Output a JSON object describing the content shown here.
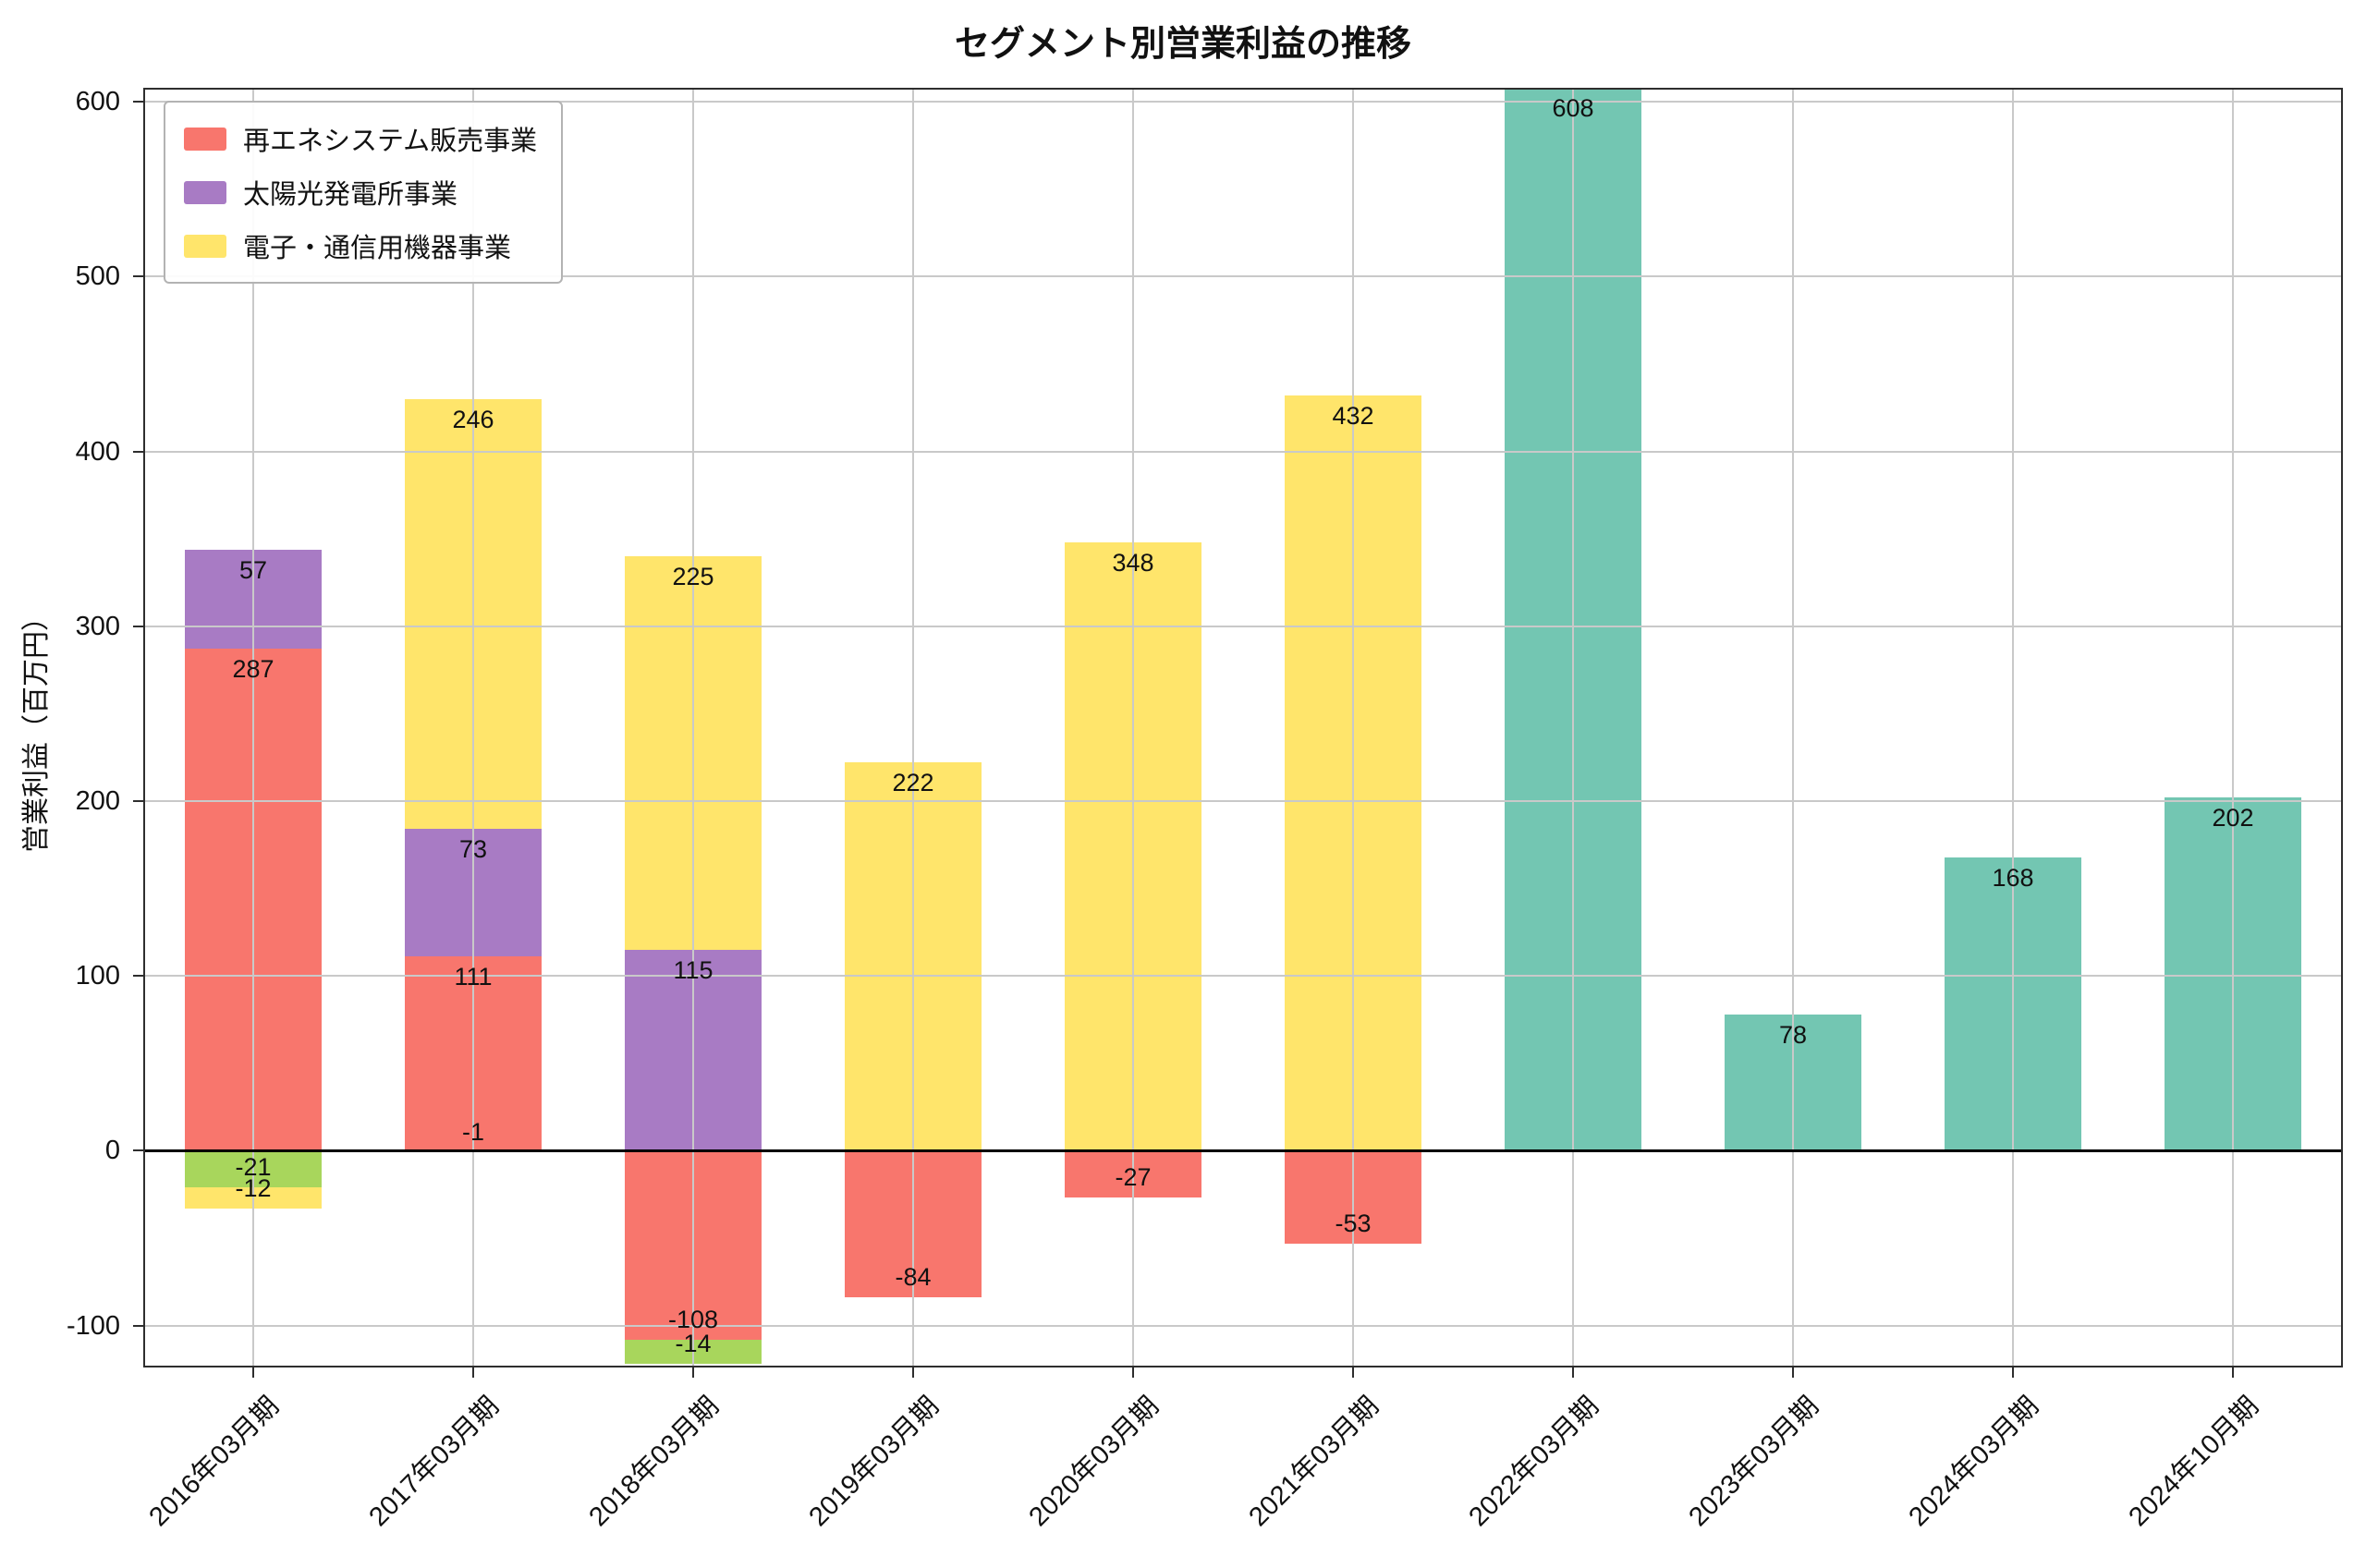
{
  "page": {
    "background": "#ffffff"
  },
  "chart_data": {
    "type": "bar",
    "stacked": true,
    "title": "セグメント別営業利益の推移",
    "ylabel": "営業利益（百万円）",
    "xlabel": "",
    "ylim": [
      -124,
      608
    ],
    "yticks": [
      -100,
      0,
      100,
      200,
      300,
      400,
      500,
      600
    ],
    "grid": true,
    "zero_line": true,
    "legend_position": "upper-left",
    "categories": [
      "2016年03月期",
      "2017年03月期",
      "2018年03月期",
      "2019年03月期",
      "2020年03月期",
      "2021年03月期",
      "2022年03月期",
      "2023年03月期",
      "2024年03月期",
      "2024年10月期"
    ],
    "series": [
      {
        "name": "再エネシステム販売事業",
        "color": "#f8766d",
        "in_legend": true,
        "values": [
          287,
          111,
          -108,
          -84,
          -27,
          -53,
          null,
          null,
          null,
          null
        ]
      },
      {
        "name": "",
        "color": "#a8d65c",
        "in_legend": false,
        "values": [
          -21,
          -1,
          -14,
          null,
          null,
          null,
          null,
          null,
          null,
          null
        ]
      },
      {
        "name": "太陽光発電所事業",
        "color": "#a87bc4",
        "in_legend": true,
        "values": [
          57,
          73,
          115,
          null,
          null,
          null,
          null,
          null,
          null,
          null
        ]
      },
      {
        "name": "電子・通信用機器事業",
        "color": "#ffe56b",
        "in_legend": true,
        "values": [
          -12,
          246,
          225,
          222,
          348,
          432,
          null,
          null,
          null,
          null
        ]
      },
      {
        "name": "",
        "color": "#73c6b2",
        "in_legend": false,
        "values": [
          null,
          null,
          null,
          null,
          null,
          null,
          608,
          78,
          168,
          202
        ]
      }
    ],
    "colors": {
      "grid": "#c9c9c9",
      "axis": "#2e2e2e",
      "zero_line": "#000000",
      "label_text": "#111111",
      "legend_border": "#b3b3b3"
    }
  }
}
